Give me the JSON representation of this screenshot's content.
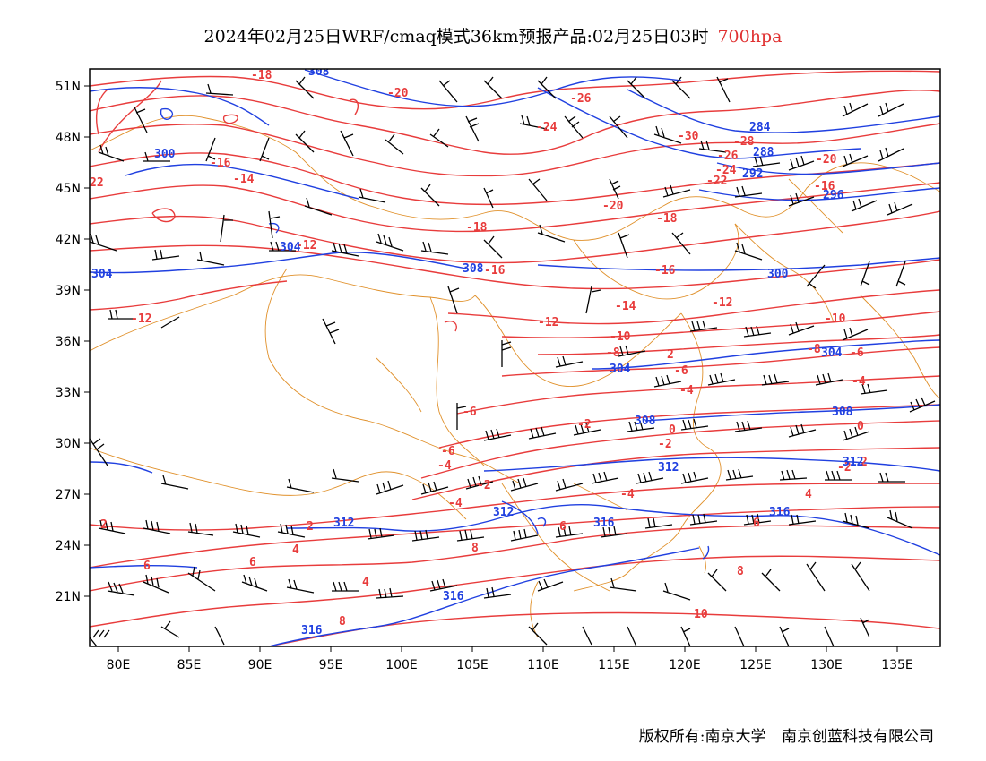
{
  "title": {
    "main": "2024年02月25日WRF/cmaq模式36km预报产品:02月25日03时",
    "level": "700hpa"
  },
  "axes": {
    "lat_labels": [
      "51N",
      "48N",
      "45N",
      "42N",
      "39N",
      "36N",
      "33N",
      "30N",
      "27N",
      "24N",
      "21N"
    ],
    "lat_values": [
      51,
      48,
      45,
      42,
      39,
      36,
      33,
      30,
      27,
      24,
      21
    ],
    "lon_labels": [
      "80E",
      "85E",
      "90E",
      "95E",
      "100E",
      "105E",
      "110E",
      "115E",
      "120E",
      "125E",
      "130E",
      "135E"
    ],
    "lon_values": [
      80,
      85,
      90,
      95,
      100,
      105,
      110,
      115,
      120,
      125,
      130,
      135
    ],
    "lon_range": [
      78,
      138
    ],
    "lat_range": [
      18,
      52
    ]
  },
  "colors": {
    "temperature_contour": "#e83c3c",
    "height_contour": "#2040e0",
    "border": "#e0902a",
    "wind_barb": "#000000"
  },
  "temperature_labels": [
    "-18",
    "-20",
    "-26",
    "-24",
    "-30",
    "-28",
    "-26",
    "-24",
    "-22",
    "-20",
    "-16",
    "-16",
    "-14",
    "-20",
    "-18",
    "-18",
    "-16",
    "-16",
    "-12",
    "-12",
    "-14",
    "-12",
    "-12",
    "-10",
    "-10",
    "-8",
    "-8",
    "-6",
    "-6",
    "-4",
    "-4",
    "-6",
    "-2",
    "0",
    "-2",
    "-6",
    "-4",
    "-2",
    "-2",
    "-4",
    "4",
    "2",
    "2",
    "-4",
    "2",
    "0",
    "2",
    "4",
    "6",
    "6",
    "4",
    "6",
    "6",
    "8",
    "8",
    "8",
    "10",
    "22"
  ],
  "height_labels": [
    "308",
    "300",
    "284",
    "288",
    "292",
    "296",
    "304",
    "304",
    "308",
    "300",
    "304",
    "304",
    "308",
    "308",
    "312",
    "312",
    "312",
    "316",
    "316",
    "312",
    "316",
    "316"
  ],
  "copyright": {
    "left": "版权所有:南京大学",
    "right": "南京创蓝科技有限公司"
  }
}
